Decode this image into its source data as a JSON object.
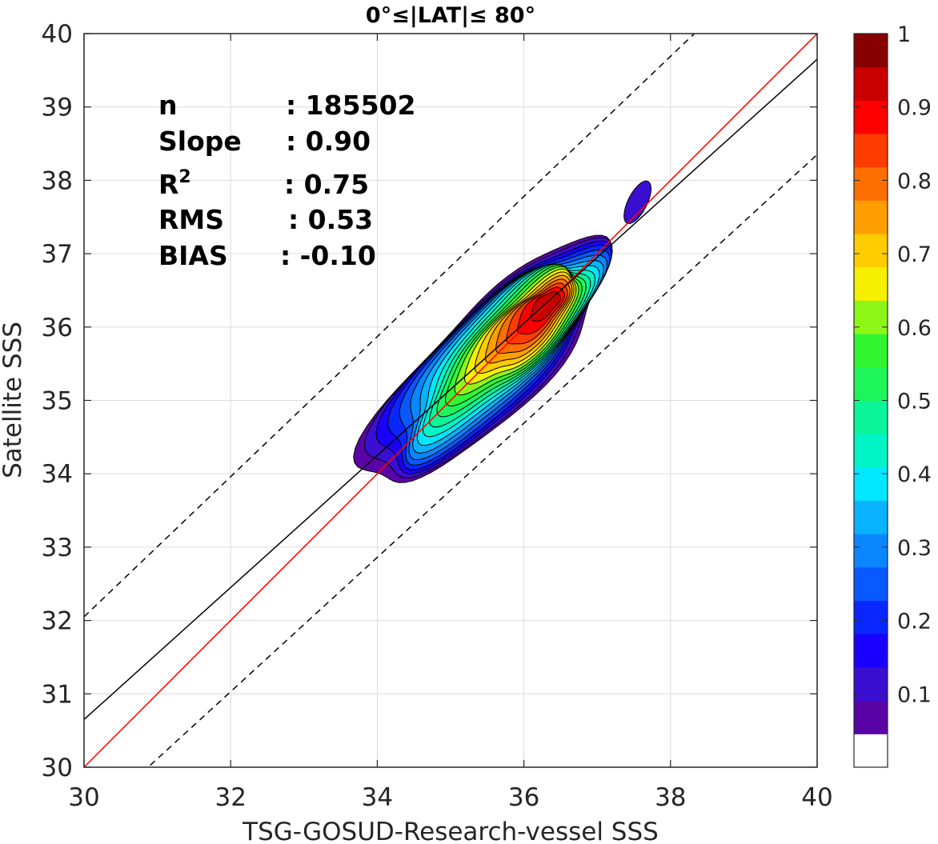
{
  "chart_data": {
    "type": "contour",
    "title": "0°≤|LAT|≤ 80°",
    "xlabel": "TSG-GOSUD-Research-vessel SSS",
    "ylabel": "Satellite SSS",
    "xlim": [
      30,
      40
    ],
    "ylim": [
      30,
      40
    ],
    "x_ticks": [
      "30",
      "32",
      "34",
      "36",
      "38",
      "40"
    ],
    "y_ticks": [
      "30",
      "31",
      "32",
      "33",
      "34",
      "35",
      "36",
      "37",
      "38",
      "39",
      "40"
    ],
    "grid": true,
    "stats": {
      "n_label": "n",
      "n_value": ": 185502",
      "slope_label": "Slope",
      "slope_value": ": 0.90",
      "r2_label": "R",
      "r2_sup": "2",
      "r2_value": ": 0.75",
      "rms_label": "RMS",
      "rms_value": ": 0.53",
      "bias_label": "BIAS",
      "bias_value": ": -0.10"
    },
    "lines": [
      {
        "kind": "one-to-one",
        "color": "#ff0000",
        "style": "solid",
        "points": [
          [
            30,
            30
          ],
          [
            40,
            40
          ]
        ]
      },
      {
        "kind": "regression",
        "color": "#000000",
        "style": "solid",
        "points": [
          [
            30,
            30.65
          ],
          [
            40,
            39.65
          ]
        ]
      },
      {
        "kind": "upper-bound",
        "color": "#000000",
        "style": "dashed",
        "points": [
          [
            30,
            32.05
          ],
          [
            40,
            41.6
          ]
        ]
      },
      {
        "kind": "lower-bound",
        "color": "#000000",
        "style": "dashed",
        "points": [
          [
            30,
            29.2
          ],
          [
            40,
            38.35
          ]
        ]
      }
    ],
    "density_center": [
      36.3,
      36.3
    ],
    "density_levels": [
      0.05,
      0.1,
      0.15,
      0.2,
      0.25,
      0.3,
      0.35,
      0.4,
      0.45,
      0.5,
      0.55,
      0.6,
      0.65,
      0.7,
      0.75,
      0.8,
      0.85,
      0.9,
      0.95,
      1.0
    ],
    "colorbar": {
      "range": [
        0,
        1
      ],
      "ticks": [
        "0.1",
        "0.2",
        "0.3",
        "0.4",
        "0.5",
        "0.6",
        "0.7",
        "0.8",
        "0.9",
        "1"
      ],
      "colors": [
        "#ffffff",
        "#5a04a8",
        "#3a0fd1",
        "#1a00ff",
        "#0a26ff",
        "#0a58ff",
        "#0a86ff",
        "#09b3ff",
        "#00e8ff",
        "#00f5c6",
        "#0af59a",
        "#1ef55a",
        "#31f531",
        "#8ef617",
        "#f5f000",
        "#ffcc00",
        "#ff9f00",
        "#ff6f00",
        "#ff3c00",
        "#ff0000",
        "#c90000",
        "#870000"
      ]
    }
  }
}
